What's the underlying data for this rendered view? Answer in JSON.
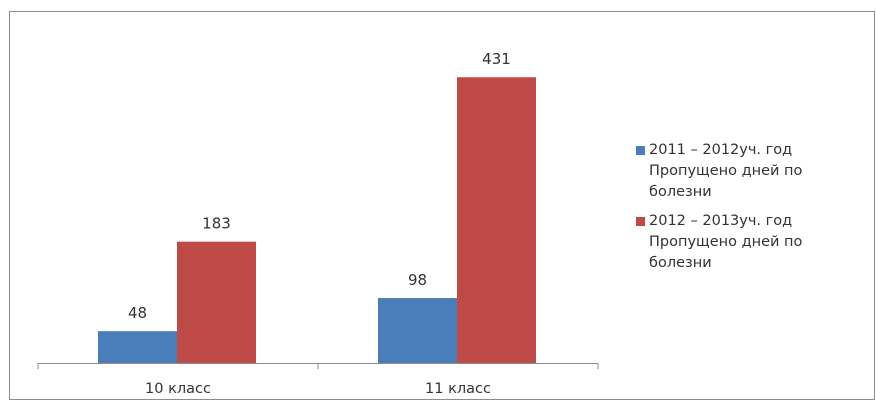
{
  "chart_data": {
    "type": "bar",
    "categories": [
      "10 класс",
      "11 класс"
    ],
    "series": [
      {
        "name": "2011 – 2012уч. год\nПропущено дней по\nболезни",
        "values": [
          48,
          98
        ],
        "color": "#4a7ebb"
      },
      {
        "name": "2012 – 2013уч. год\nПропущено дней по\nболезни",
        "values": [
          183,
          431
        ],
        "color": "#be4b48"
      }
    ],
    "ylim": [
      0,
      500
    ],
    "grid": false,
    "legend_position": "right"
  }
}
